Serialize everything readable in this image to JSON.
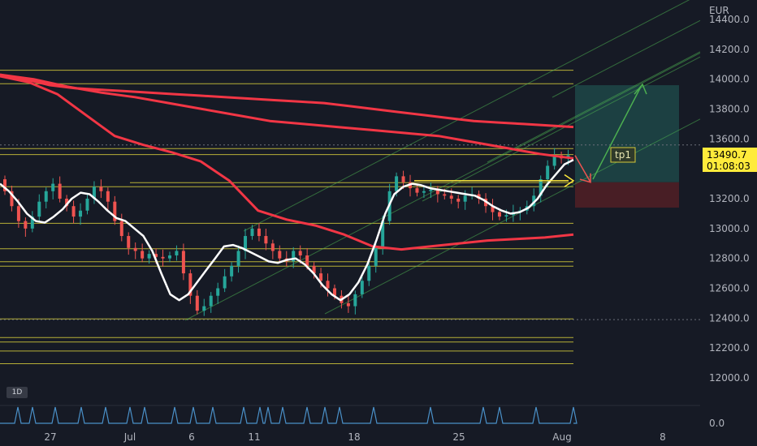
{
  "symbol_currency": "EUR",
  "interval_badge": "1D",
  "colors": {
    "background": "#161a25",
    "up": "#26a69a",
    "down": "#ef5350",
    "ma_white": "#ffffff",
    "ma_red": "#f23645",
    "level_lines": "#d4c93a",
    "channel": "#4caf50",
    "price_tag": "#ffeb3b",
    "target_zone": "#1f4e4c",
    "stop_zone": "#5a2026",
    "indicator": "#4a90c8"
  },
  "annotations": {
    "tp_label": "tp1"
  },
  "current_price": {
    "value": "13490.7",
    "countdown": "01:08:03"
  },
  "chart_data": {
    "type": "candlestick",
    "currency": "EUR",
    "ylim": [
      11850,
      14500
    ],
    "y_ticks": [
      "14400.0",
      "14200.0",
      "14000.0",
      "13800.0",
      "13600.0",
      "13400.0",
      "13200.0",
      "13000.0",
      "12800.0",
      "12600.0",
      "12400.0",
      "12200.0",
      "12000.0"
    ],
    "x_ticks": [
      "27",
      "Jul",
      "6",
      "11",
      "18",
      "25",
      "Aug",
      "8"
    ],
    "price_path": [
      13330,
      13250,
      13150,
      13050,
      13000,
      13080,
      13180,
      13250,
      13300,
      13200,
      13150,
      13080,
      13120,
      13200,
      13280,
      13250,
      13180,
      13050,
      12950,
      12870,
      12850,
      12800,
      12830,
      12810,
      12800,
      12820,
      12850,
      12700,
      12550,
      12450,
      12480,
      12550,
      12600,
      12680,
      12750,
      12850,
      12950,
      13000,
      12950,
      12900,
      12850,
      12800,
      12780,
      12850,
      12820,
      12750,
      12700,
      12650,
      12600,
      12550,
      12500,
      12480,
      12560,
      12650,
      12750,
      12880,
      13050,
      13250,
      13350,
      13310,
      13270,
      13240,
      13250,
      13260,
      13230,
      13220,
      13200,
      13180,
      13220,
      13230,
      13200,
      13150,
      13110,
      13080,
      13090,
      13110,
      13120,
      13150,
      13220,
      13330,
      13420,
      13490,
      13470,
      13490
    ],
    "resistance_lines": [
      14060,
      13970,
      13535,
      13495,
      13307,
      13280,
      13035,
      12865,
      12778,
      12748,
      12395,
      12270,
      12240,
      12180,
      12095
    ],
    "ma_white": [
      13300,
      13250,
      13180,
      13100,
      13050,
      13040,
      13080,
      13130,
      13200,
      13240,
      13230,
      13180,
      13120,
      13070,
      13050,
      13000,
      12950,
      12850,
      12700,
      12560,
      12520,
      12560,
      12640,
      12720,
      12800,
      12880,
      12890,
      12870,
      12840,
      12810,
      12780,
      12770,
      12790,
      12800,
      12760,
      12700,
      12620,
      12560,
      12520,
      12560,
      12640,
      12760,
      12920,
      13100,
      13230,
      13280,
      13300,
      13290,
      13270,
      13260,
      13250,
      13240,
      13230,
      13220,
      13190,
      13150,
      13120,
      13100,
      13110,
      13140,
      13200,
      13290,
      13360,
      13430,
      13460
    ],
    "ma_red_upper": [
      14030,
      14000,
      13960,
      13940,
      13930,
      13920,
      13910,
      13900,
      13890,
      13880,
      13870,
      13860,
      13850,
      13840,
      13820,
      13800,
      13780,
      13760,
      13740,
      13720,
      13710,
      13700,
      13690,
      13680
    ],
    "ma_red_middle": [
      14030,
      14000,
      13950,
      13910,
      13880,
      13840,
      13800,
      13760,
      13720,
      13700,
      13680,
      13660,
      13640,
      13620,
      13580,
      13540,
      13500,
      13470
    ],
    "ma_red_lower": [
      14020,
      13980,
      13900,
      13760,
      13620,
      13560,
      13510,
      13450,
      13320,
      13120,
      13060,
      13020,
      12960,
      12880,
      12860,
      12880,
      12900,
      12920,
      12930,
      12940,
      12960
    ],
    "channel_lines": [
      [
        12400,
        13300
      ],
      [
        12570,
        13470
      ],
      [
        12740,
        13640
      ],
      [
        12910,
        13810
      ],
      [
        13080,
        13980
      ],
      [
        13250,
        14150
      ]
    ],
    "projection": {
      "entry": 13310,
      "target": 13960,
      "stop": 13140,
      "tp1": 13490
    },
    "indicator_pane": {
      "zero_label": "0.0"
    }
  }
}
